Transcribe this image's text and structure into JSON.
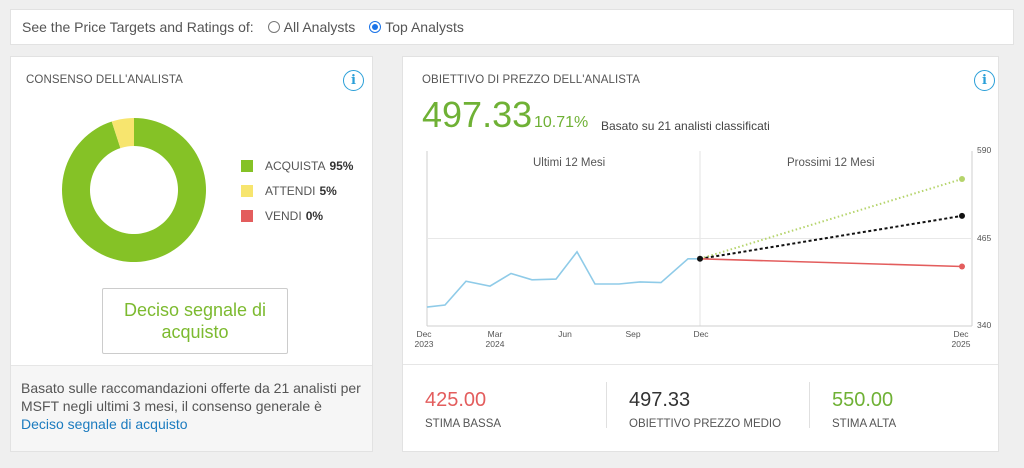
{
  "filter": {
    "label": "See the Price Targets and Ratings of:",
    "options": [
      {
        "label": "All Analysts",
        "selected": false
      },
      {
        "label": "Top Analysts",
        "selected": true
      }
    ]
  },
  "consensus": {
    "title": "CONSENSO DELL'ANALISTA",
    "legend": [
      {
        "label": "ACQUISTA",
        "value": "95%",
        "percent": 95,
        "color": "#85c226"
      },
      {
        "label": "ATTENDI",
        "value": "5%",
        "percent": 5,
        "color": "#f7e56e"
      },
      {
        "label": "VENDI",
        "value": "0%",
        "percent": 0,
        "color": "#e35d5d"
      }
    ],
    "signal": "Deciso segnale di acquisto",
    "footer_text": "Basato sulle raccomandazioni offerte da 21 analisti per MSFT negli ultimi 3 mesi, il consenso generale è",
    "footer_link": "Deciso segnale di acquisto"
  },
  "target": {
    "title": "OBIETTIVO DI PREZZO DELL'ANALISTA",
    "price": "497.33",
    "upside": "10.71%",
    "based_on": "Basato su 21 analisti classificati",
    "stats": [
      {
        "value": "425.00",
        "label": "STIMA BASSA",
        "color": "#e35d5d"
      },
      {
        "value": "497.33",
        "label": "OBIETTIVO PREZZO MEDIO",
        "color": "#333333"
      },
      {
        "value": "550.00",
        "label": "STIMA ALTA",
        "color": "#6fb135"
      }
    ]
  },
  "chart_data": {
    "type": "line",
    "title": "",
    "xlabel": "",
    "ylabel": "",
    "period_labels": [
      "Ultimi 12 Mesi",
      "Prossimi 12 Mesi"
    ],
    "x_ticks": [
      {
        "label": "Dec",
        "sub": "2023"
      },
      {
        "label": "Mar",
        "sub": "2024"
      },
      {
        "label": "Jun",
        "sub": ""
      },
      {
        "label": "Sep",
        "sub": ""
      },
      {
        "label": "Dec",
        "sub": ""
      },
      {
        "label": "Dec",
        "sub": "2025"
      }
    ],
    "y_ticks": [
      590,
      465,
      340
    ],
    "ylim": [
      340,
      590
    ],
    "grid": true,
    "series": [
      {
        "name": "",
        "color": "#8fcbe8",
        "dashed": false,
        "values": [
          {
            "m": 0,
            "y": 367
          },
          {
            "m": 0.6,
            "y": 370
          },
          {
            "m": 1.3,
            "y": 404
          },
          {
            "m": 2.1,
            "y": 397
          },
          {
            "m": 2.8,
            "y": 415
          },
          {
            "m": 3.5,
            "y": 406
          },
          {
            "m": 4.3,
            "y": 407
          },
          {
            "m": 5.0,
            "y": 446
          },
          {
            "m": 5.6,
            "y": 400
          },
          {
            "m": 6.4,
            "y": 400
          },
          {
            "m": 7.1,
            "y": 403
          },
          {
            "m": 7.8,
            "y": 402
          },
          {
            "m": 8.7,
            "y": 436
          },
          {
            "m": 9.1,
            "y": 436
          }
        ]
      },
      {
        "name": "",
        "color": "#b5d46b",
        "dashed": true,
        "dash": "1.5 2.5",
        "endpoint": true,
        "values": [
          {
            "m": 9.1,
            "y": 436
          },
          {
            "m": 21.3,
            "y": 550
          }
        ]
      },
      {
        "name": "",
        "color": "#111111",
        "dashed": true,
        "dash": "3 2.5",
        "endpoint": true,
        "values": [
          {
            "m": 9.1,
            "y": 436
          },
          {
            "m": 21.3,
            "y": 497.33
          }
        ]
      },
      {
        "name": "",
        "color": "#e35d5d",
        "dashed": false,
        "endpoint": true,
        "values": [
          {
            "m": 9.1,
            "y": 436
          },
          {
            "m": 21.3,
            "y": 425
          }
        ]
      }
    ]
  }
}
